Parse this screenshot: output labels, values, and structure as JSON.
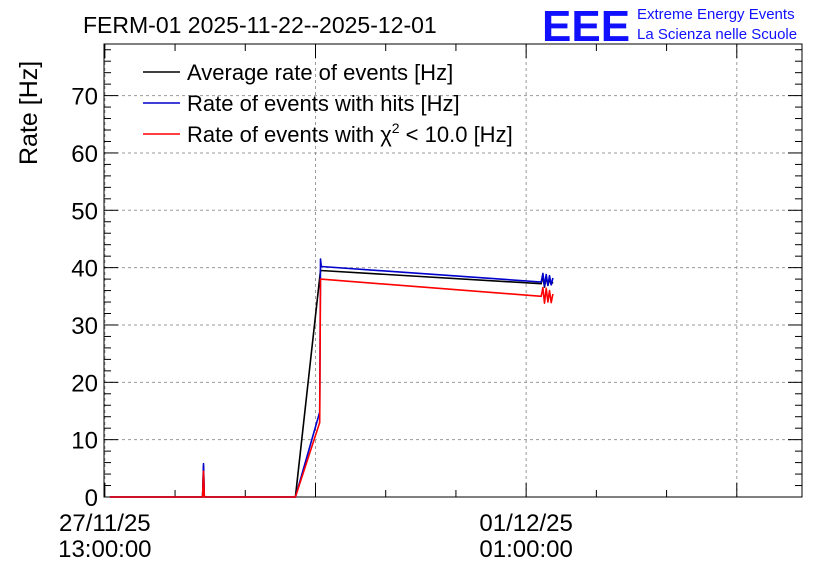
{
  "header": {
    "title": "FERM-01 2025-11-22--2025-12-01",
    "logo_text": "EEE",
    "logo_line1": "Extreme Energy Events",
    "logo_line2": "La Scienza nelle Scuole"
  },
  "colors": {
    "logo": "#1010ff",
    "grid": "#9a9a9a",
    "series_average": "#000000",
    "series_hits": "#0000cc",
    "series_chi2": "#ff0000"
  },
  "chart_data": {
    "type": "line",
    "title": "FERM-01 2025-11-22--2025-12-01",
    "ylabel": "Rate [Hz]",
    "xlabel": "",
    "ylim": [
      0,
      79
    ],
    "xlim": [
      "2025-11-27 12:50",
      "2025-12-03 08:00"
    ],
    "yticks": [
      0,
      10,
      20,
      30,
      40,
      50,
      60,
      70
    ],
    "xticks": [
      {
        "x": "2025-11-27 13:00",
        "label_line1": "27/11/25",
        "label_line2": "13:00:00"
      },
      {
        "x": "2025-12-01 01:00",
        "label_line1": "01/12/25",
        "label_line2": "01:00:00"
      }
    ],
    "grid": true,
    "legend_position": "top-left",
    "series": [
      {
        "name": "Average rate of events [Hz]",
        "color": "#000000",
        "points": [
          [
            "2025-11-27 14:00",
            0
          ],
          [
            "2025-11-28 08:30",
            0
          ],
          [
            "2025-11-28 08:40",
            5.3
          ],
          [
            "2025-11-28 08:50",
            0
          ],
          [
            "2025-11-29 03:00",
            0
          ],
          [
            "2025-11-29 08:00",
            39.5
          ],
          [
            "2025-12-01 04:00",
            37.2
          ],
          [
            "2025-12-01 04:20",
            38.6
          ],
          [
            "2025-12-01 04:40",
            36.6
          ],
          [
            "2025-12-01 05:00",
            38.4
          ],
          [
            "2025-12-01 05:20",
            36.9
          ],
          [
            "2025-12-01 05:40",
            38.0
          ],
          [
            "2025-12-01 06:00",
            37.1
          ],
          [
            "2025-12-01 06:20",
            37.5
          ]
        ]
      },
      {
        "name": "Rate of events with hits [Hz]",
        "color": "#0000cc",
        "points": [
          [
            "2025-11-27 14:00",
            0
          ],
          [
            "2025-11-28 08:30",
            0
          ],
          [
            "2025-11-28 08:40",
            5.8
          ],
          [
            "2025-11-28 08:50",
            0
          ],
          [
            "2025-11-29 03:00",
            0
          ],
          [
            "2025-11-29 07:50",
            14.8
          ],
          [
            "2025-11-29 08:00",
            41.5
          ],
          [
            "2025-11-29 08:10",
            40.2
          ],
          [
            "2025-12-01 04:00",
            37.5
          ],
          [
            "2025-12-01 04:20",
            39.0
          ],
          [
            "2025-12-01 04:40",
            36.8
          ],
          [
            "2025-12-01 05:00",
            38.8
          ],
          [
            "2025-12-01 05:20",
            36.9
          ],
          [
            "2025-12-01 05:40",
            38.6
          ],
          [
            "2025-12-01 06:00",
            37.0
          ],
          [
            "2025-12-01 06:20",
            38.2
          ]
        ]
      },
      {
        "name": "Rate of events with χ² < 10.0 [Hz]",
        "color": "#ff0000",
        "points": [
          [
            "2025-11-27 14:00",
            0
          ],
          [
            "2025-11-28 08:30",
            0
          ],
          [
            "2025-11-28 08:40",
            4.5
          ],
          [
            "2025-11-28 08:50",
            0
          ],
          [
            "2025-11-29 03:00",
            0
          ],
          [
            "2025-11-29 07:50",
            13.0
          ],
          [
            "2025-11-29 08:00",
            38.0
          ],
          [
            "2025-12-01 04:00",
            35.0
          ],
          [
            "2025-12-01 04:20",
            36.5
          ],
          [
            "2025-12-01 04:40",
            33.8
          ],
          [
            "2025-12-01 05:00",
            36.4
          ],
          [
            "2025-12-01 05:20",
            34.0
          ],
          [
            "2025-12-01 05:40",
            36.0
          ],
          [
            "2025-12-01 06:00",
            33.9
          ],
          [
            "2025-12-01 06:20",
            35.4
          ]
        ]
      }
    ],
    "legend": [
      {
        "label_prefix": "Average rate of events [Hz]",
        "sup": "",
        "label_suffix": ""
      },
      {
        "label_prefix": "Rate of events with hits [Hz]",
        "sup": "",
        "label_suffix": ""
      },
      {
        "label_prefix": "Rate of events with χ",
        "sup": "2",
        "label_suffix": " < 10.0 [Hz]"
      }
    ]
  }
}
